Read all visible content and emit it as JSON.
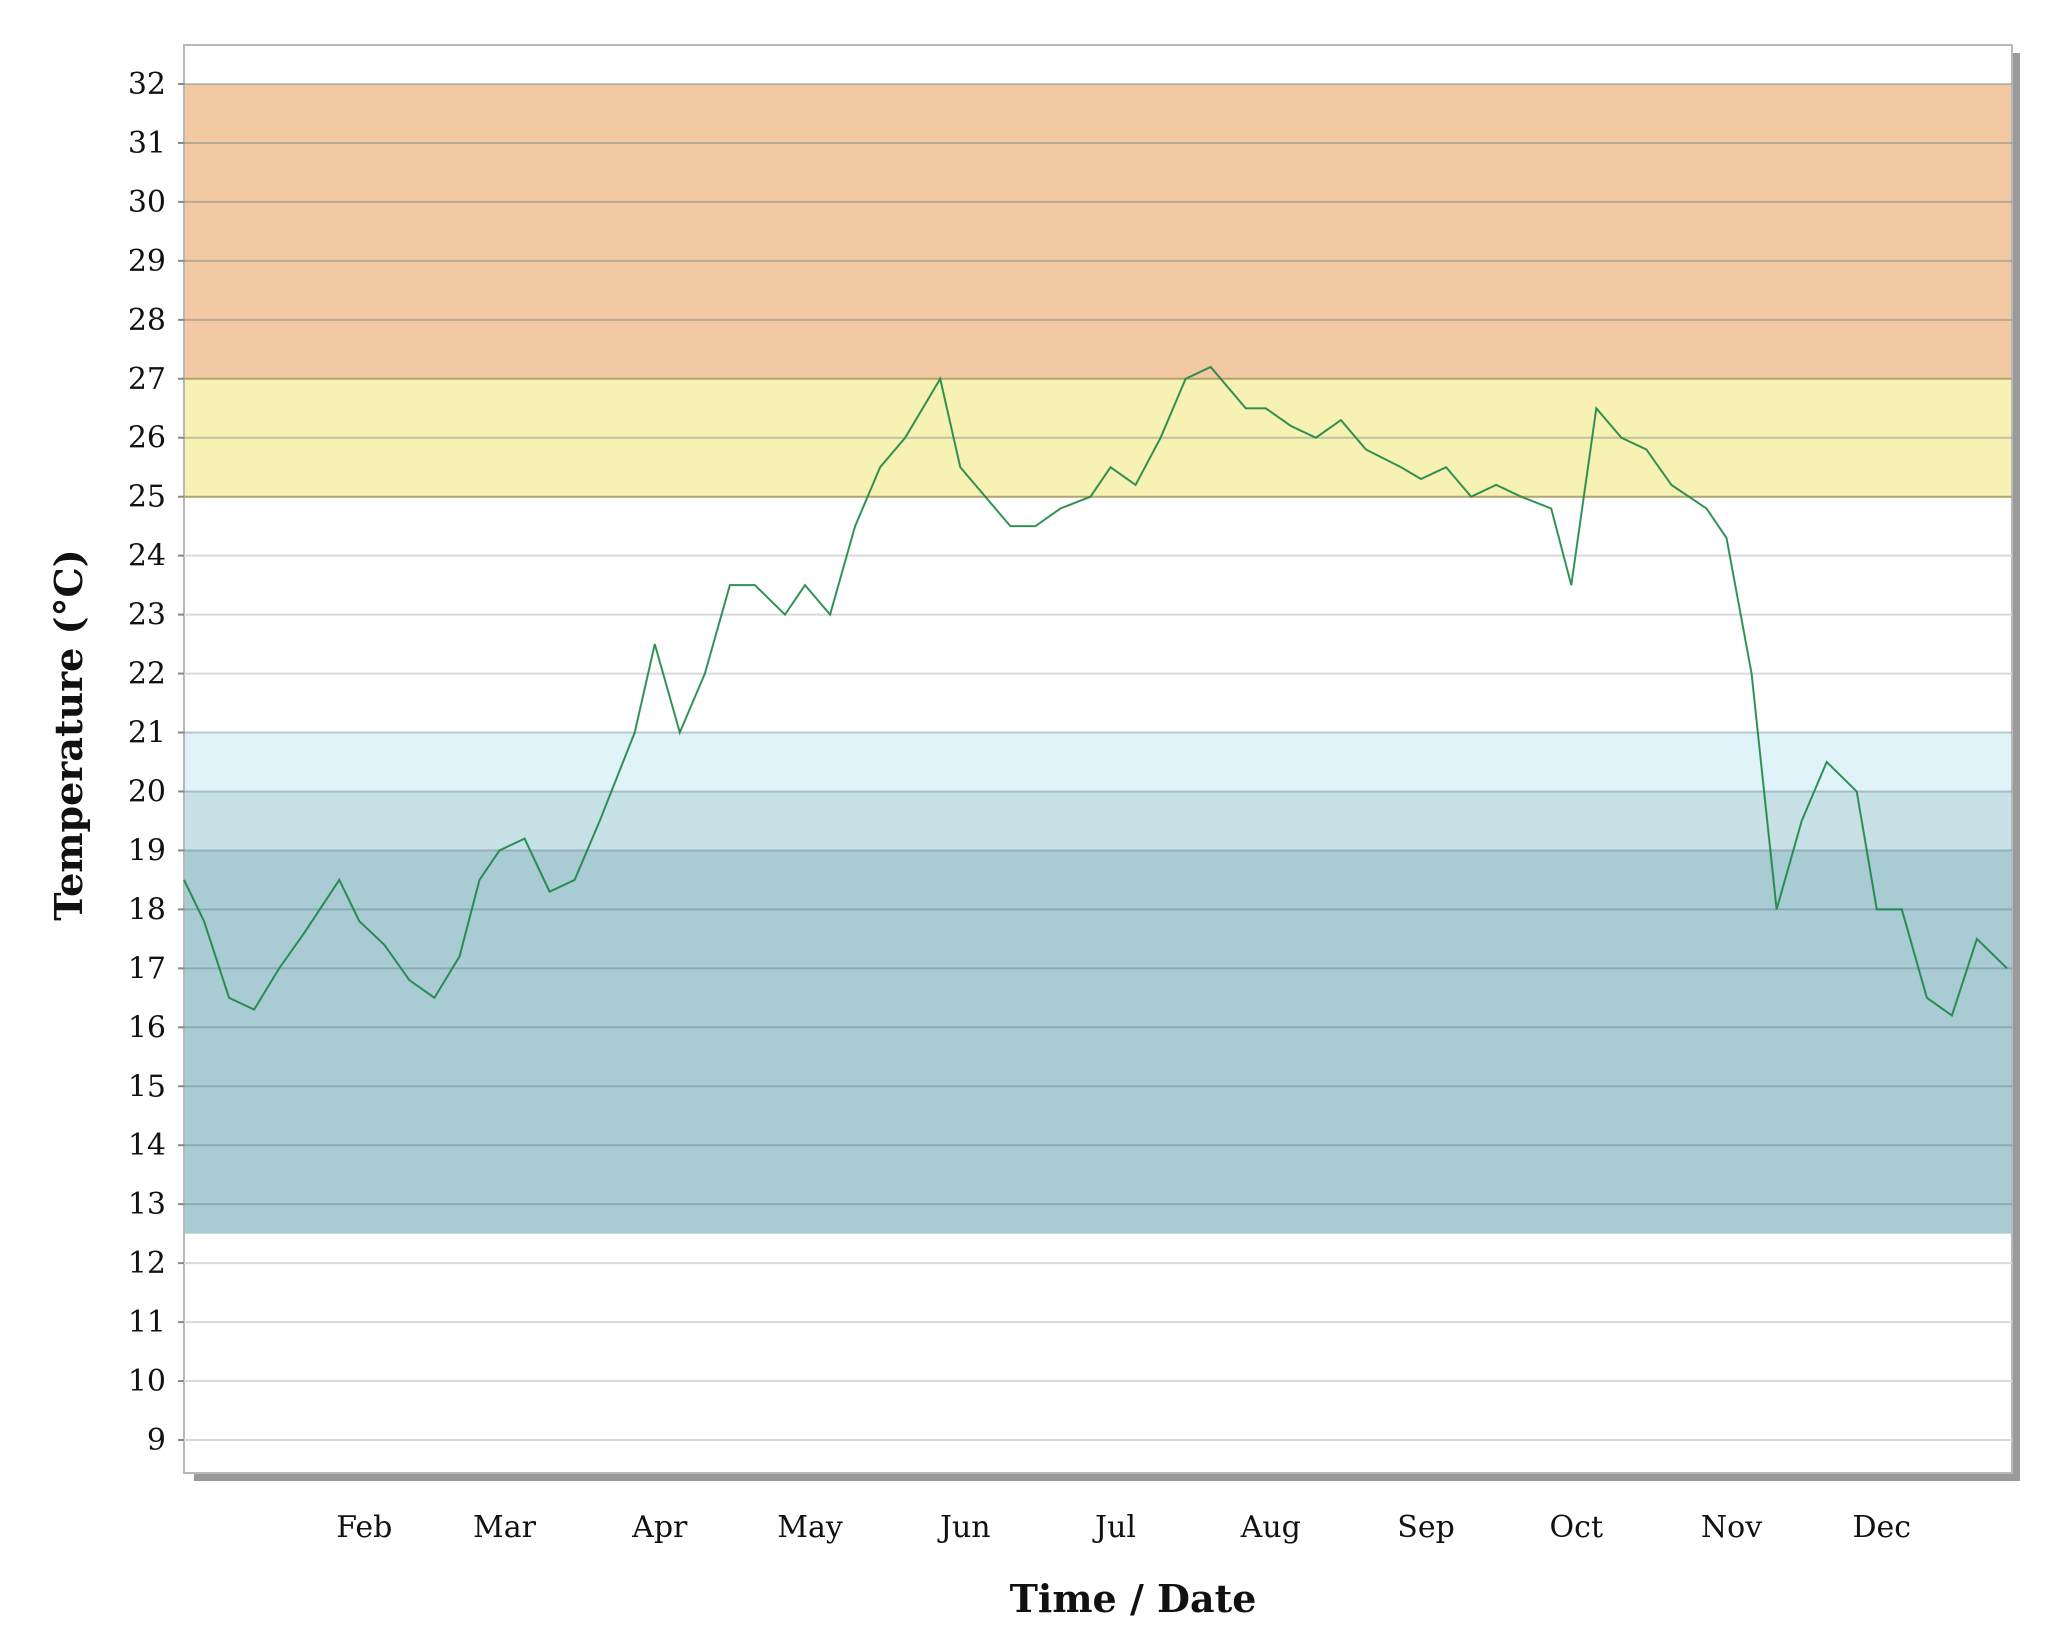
{
  "chart_data": {
    "type": "line",
    "title": "",
    "xlabel": "Time / Date",
    "ylabel": "Temperature (°C)",
    "ylim": [
      9,
      32
    ],
    "y_ticks": [
      9,
      10,
      11,
      12,
      13,
      14,
      15,
      16,
      17,
      18,
      19,
      20,
      21,
      22,
      23,
      24,
      25,
      26,
      27,
      28,
      29,
      30,
      31,
      32
    ],
    "x_ticks": [
      "Feb",
      "Mar",
      "Apr",
      "May",
      "Jun",
      "Jul",
      "Aug",
      "Sep",
      "Oct",
      "Nov",
      "Dec"
    ],
    "grid": true,
    "legend": "none",
    "bands": [
      {
        "from": 27,
        "to": 32,
        "color": "#f2c9a3"
      },
      {
        "from": 25,
        "to": 27,
        "color": "#f7f1b4"
      },
      {
        "from": 20,
        "to": 21,
        "color": "#dff3f8"
      },
      {
        "from": 19,
        "to": 20,
        "color": "#c7e1e6"
      },
      {
        "from": 12.5,
        "to": 19,
        "color": "#a9cbd4"
      }
    ],
    "series": [
      {
        "color": "#1e9a4f",
        "x": [
          "01-01",
          "01-05",
          "01-10",
          "01-15",
          "01-20",
          "01-25",
          "02-01",
          "02-05",
          "02-10",
          "02-15",
          "02-20",
          "02-25",
          "03-01",
          "03-05",
          "03-10",
          "03-15",
          "03-20",
          "03-25",
          "04-01",
          "04-05",
          "04-10",
          "04-15",
          "04-20",
          "04-25",
          "05-01",
          "05-05",
          "05-10",
          "05-15",
          "05-20",
          "05-25",
          "06-01",
          "06-05",
          "06-10",
          "06-15",
          "06-20",
          "06-25",
          "07-01",
          "07-05",
          "07-10",
          "07-15",
          "07-20",
          "07-25",
          "08-01",
          "08-05",
          "08-10",
          "08-15",
          "08-20",
          "08-25",
          "09-01",
          "09-05",
          "09-10",
          "09-15",
          "09-20",
          "09-25",
          "10-01",
          "10-05",
          "10-10",
          "10-15",
          "10-20",
          "10-25",
          "11-01",
          "11-05",
          "11-10",
          "11-15",
          "11-20",
          "11-25",
          "12-01",
          "12-05",
          "12-10",
          "12-15",
          "12-20",
          "12-25",
          "12-31"
        ],
        "values": [
          18.5,
          17.8,
          16.5,
          16.3,
          17.0,
          17.6,
          18.5,
          17.8,
          17.4,
          16.8,
          16.5,
          17.2,
          18.5,
          19.0,
          19.2,
          18.3,
          18.5,
          19.5,
          21.0,
          22.5,
          21.0,
          22.0,
          23.5,
          23.5,
          23.0,
          23.5,
          23.0,
          24.5,
          25.5,
          26.0,
          27.0,
          25.5,
          25.0,
          24.5,
          24.5,
          24.8,
          25.0,
          25.5,
          25.2,
          26.0,
          27.0,
          27.2,
          26.5,
          26.5,
          26.2,
          26.0,
          26.3,
          25.8,
          25.5,
          25.3,
          25.5,
          25.0,
          25.2,
          25.0,
          24.8,
          23.5,
          26.5,
          26.0,
          25.8,
          25.2,
          24.8,
          24.3,
          22.0,
          18.0,
          19.5,
          20.5,
          20.0,
          18.0,
          18.0,
          16.5,
          16.2,
          17.5,
          17.0
        ]
      }
    ]
  }
}
